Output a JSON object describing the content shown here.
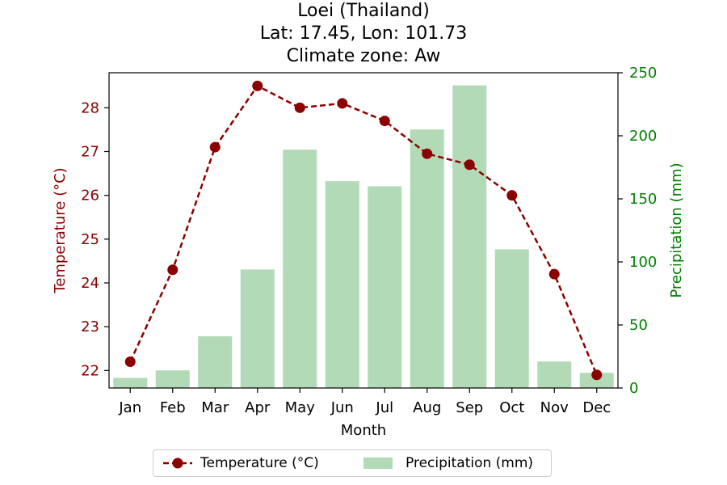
{
  "chart_data": {
    "type": "bar+line",
    "title_lines": [
      "Loei (Thailand)",
      "Lat: 17.45, Lon: 101.73",
      "Climate zone: Aw"
    ],
    "xlabel": "Month",
    "categories": [
      "Jan",
      "Feb",
      "Mar",
      "Apr",
      "May",
      "Jun",
      "Jul",
      "Aug",
      "Sep",
      "Oct",
      "Nov",
      "Dec"
    ],
    "temperature": {
      "name": "Temperature (°C)",
      "axis_label": "Temperature (°C)",
      "values": [
        22.2,
        24.3,
        27.1,
        28.5,
        28.0,
        28.1,
        27.7,
        26.95,
        26.7,
        26.0,
        24.2,
        21.9
      ],
      "ylim": [
        21.6,
        28.8
      ],
      "ticks": [
        22,
        23,
        24,
        25,
        26,
        27,
        28
      ],
      "color": "#8b0000",
      "style": "dashed line with circle markers"
    },
    "precipitation": {
      "name": "Precipitation (mm)",
      "axis_label": "Precipitation (mm)",
      "values": [
        8,
        14,
        41,
        94,
        189,
        164,
        160,
        205,
        240,
        110,
        21,
        12
      ],
      "ylim": [
        0,
        250
      ],
      "ticks": [
        0,
        50,
        100,
        150,
        200,
        250
      ],
      "color": "#b2dab6",
      "axis_color": "#008000"
    },
    "legend": {
      "placement": "bottom-center"
    }
  }
}
